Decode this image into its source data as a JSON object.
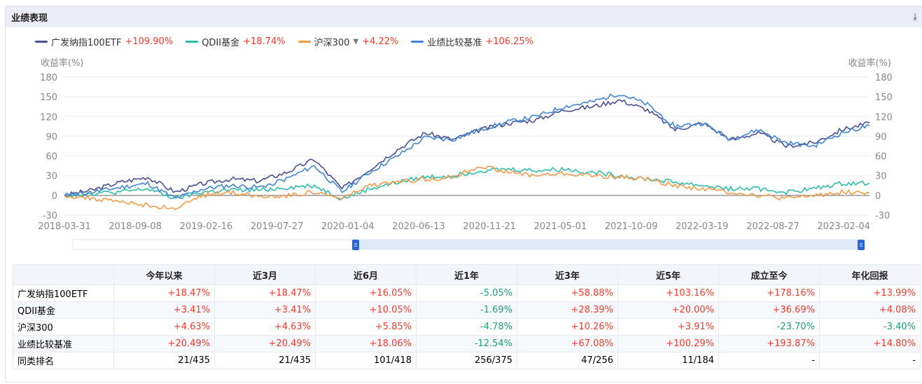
{
  "header": {
    "title": "业绩表现",
    "download_icon": "download-icon"
  },
  "chart_data": {
    "type": "line",
    "ylabel_left": "收益率(%)",
    "ylabel_right": "收益率(%)",
    "ylim": [
      -30,
      180
    ],
    "yticks": [
      "180",
      "150",
      "120",
      "90",
      "60",
      "30",
      "0",
      "-30"
    ],
    "xticks": [
      "2018-03-31",
      "2018-09-08",
      "2019-02-16",
      "2019-07-27",
      "2020-01-04",
      "2020-06-13",
      "2020-11-21",
      "2021-05-01",
      "2021-10-09",
      "2022-03-19",
      "2022-08-27",
      "2023-02-04"
    ],
    "x_start": "2018-03-31",
    "x_end": "2023-04-07",
    "series": [
      {
        "name": "广发纳指100ETF",
        "total": "+109.90%",
        "color": "#4a4f93",
        "values": [
          0,
          8,
          20,
          28,
          5,
          18,
          25,
          22,
          35,
          55,
          10,
          40,
          70,
          95,
          85,
          100,
          110,
          115,
          130,
          135,
          145,
          130,
          100,
          110,
          85,
          95,
          75,
          80,
          100,
          110
        ]
      },
      {
        "name": "QDII基金",
        "total": "+18.74%",
        "color": "#2fbdaa",
        "values": [
          0,
          3,
          5,
          10,
          -5,
          5,
          8,
          8,
          12,
          15,
          -5,
          10,
          20,
          28,
          30,
          38,
          40,
          38,
          40,
          35,
          30,
          25,
          20,
          15,
          10,
          10,
          5,
          10,
          18,
          19
        ]
      },
      {
        "name": "沪深300",
        "total": "+4.22%",
        "color": "#f39b45",
        "values": [
          0,
          -5,
          -10,
          -15,
          -20,
          0,
          5,
          -2,
          0,
          5,
          -5,
          15,
          20,
          25,
          28,
          45,
          35,
          30,
          33,
          30,
          28,
          25,
          15,
          10,
          5,
          0,
          -5,
          0,
          5,
          4
        ]
      },
      {
        "name": "业绩比较基准",
        "total": "+106.25%",
        "color": "#3f86d6",
        "values": [
          0,
          5,
          12,
          18,
          -5,
          10,
          15,
          12,
          25,
          45,
          5,
          35,
          60,
          88,
          85,
          100,
          112,
          120,
          135,
          142,
          155,
          138,
          105,
          110,
          85,
          100,
          80,
          75,
          95,
          106
        ]
      }
    ]
  },
  "table": {
    "headers": [
      "",
      "今年以来",
      "近3月",
      "近6月",
      "近1年",
      "近3年",
      "近5年",
      "成立至今",
      "年化回报"
    ],
    "rows": [
      [
        "广发纳指100ETF",
        "+18.47%",
        "+18.47%",
        "+16.05%",
        "-5.05%",
        "+58.88%",
        "+103.16%",
        "+178.16%",
        "+13.99%"
      ],
      [
        "QDII基金",
        "+3.41%",
        "+3.41%",
        "+10.05%",
        "-1.69%",
        "+28.39%",
        "+20.00%",
        "+36.69%",
        "+4.08%"
      ],
      [
        "沪深300",
        "+4.63%",
        "+4.63%",
        "+5.85%",
        "-4.78%",
        "+10.26%",
        "+3.91%",
        "-23.70%",
        "-3.40%"
      ],
      [
        "业绩比较基准",
        "+20.49%",
        "+20.49%",
        "+18.06%",
        "-12.54%",
        "+67.08%",
        "+100.29%",
        "+193.87%",
        "+14.80%"
      ],
      [
        "同类排名",
        "21/435",
        "21/435",
        "101/418",
        "256/375",
        "47/256",
        "11/184",
        "-",
        "-"
      ]
    ]
  }
}
